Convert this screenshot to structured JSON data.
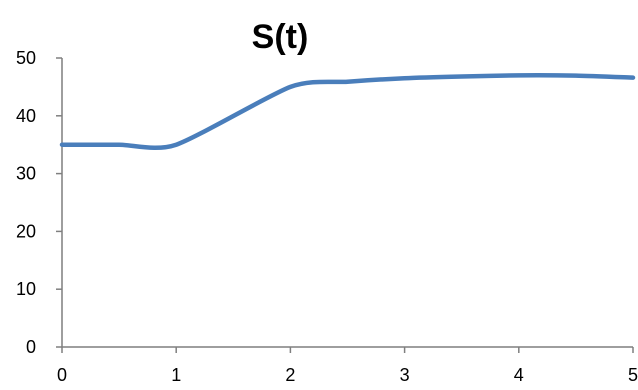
{
  "chart_data": {
    "type": "line",
    "title": "S(t)",
    "xlabel": "",
    "ylabel": "",
    "xlim": [
      0,
      5
    ],
    "ylim": [
      0,
      50
    ],
    "x_ticks": [
      0,
      1,
      2,
      3,
      4,
      5
    ],
    "y_ticks": [
      0,
      10,
      20,
      30,
      40,
      50
    ],
    "x_tick_labels": [
      "0",
      "1",
      "2",
      "3",
      "4",
      "5"
    ],
    "y_tick_labels": [
      "0",
      "10",
      "20",
      "30",
      "40",
      "50"
    ],
    "grid": false,
    "legend": "none",
    "series": [
      {
        "color": "#4a7ebb",
        "x": [
          0,
          0.5,
          1,
          2,
          2.5,
          3,
          3.5,
          4,
          4.5,
          5
        ],
        "y": [
          35,
          35,
          35,
          45,
          45.9,
          46.5,
          46.8,
          47,
          46.95,
          46.6
        ]
      }
    ]
  }
}
